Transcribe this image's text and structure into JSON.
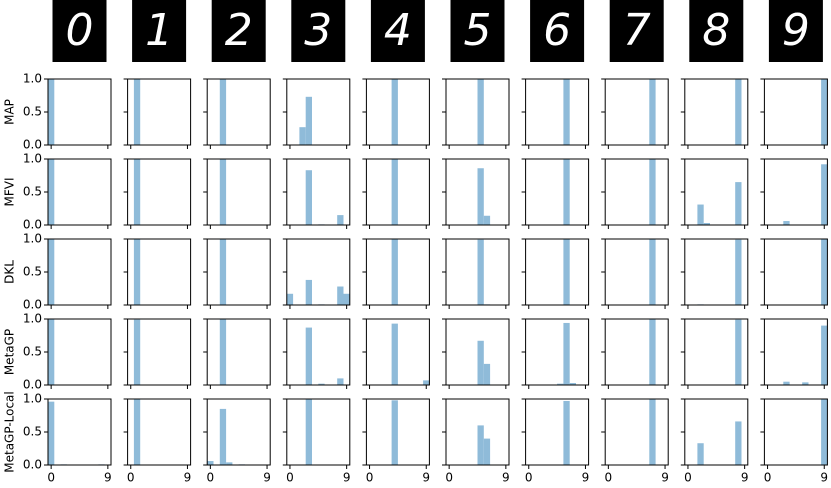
{
  "chart_data": {
    "type": "bar",
    "color": "#8fbbd9",
    "images": [
      "0",
      "1",
      "2",
      "3",
      "4",
      "5",
      "6",
      "7",
      "8",
      "9"
    ],
    "xlim": [
      -0.5,
      9.5
    ],
    "xticks": [
      0,
      9
    ],
    "ylim": [
      0,
      1
    ],
    "yticks": [
      {
        "value": 0,
        "label": "0.0"
      },
      {
        "value": 0.5,
        "label": "0.5"
      },
      {
        "value": 1,
        "label": "1.0"
      }
    ],
    "rows": [
      {
        "name": "MAP",
        "panels": [
          [
            1,
            0,
            0,
            0,
            0,
            0,
            0,
            0,
            0,
            0
          ],
          [
            0,
            1,
            0,
            0,
            0,
            0,
            0,
            0,
            0,
            0
          ],
          [
            0,
            0,
            1,
            0,
            0,
            0,
            0,
            0,
            0,
            0
          ],
          [
            0,
            0,
            0.27,
            0.73,
            0,
            0,
            0,
            0,
            0,
            0
          ],
          [
            0,
            0,
            0,
            0,
            1,
            0,
            0,
            0,
            0,
            0
          ],
          [
            0,
            0,
            0,
            0,
            0,
            1,
            0,
            0,
            0,
            0
          ],
          [
            0,
            0,
            0,
            0,
            0,
            0,
            1,
            0,
            0,
            0
          ],
          [
            0,
            0,
            0,
            0,
            0,
            0,
            0,
            1,
            0,
            0
          ],
          [
            0,
            0,
            0,
            0,
            0,
            0,
            0,
            0,
            1,
            0
          ],
          [
            0,
            0,
            0,
            0,
            0,
            0,
            0,
            0,
            0,
            1
          ]
        ]
      },
      {
        "name": "MFVI",
        "panels": [
          [
            1,
            0,
            0,
            0,
            0,
            0,
            0,
            0,
            0,
            0
          ],
          [
            0,
            1,
            0,
            0,
            0,
            0,
            0,
            0,
            0,
            0
          ],
          [
            0,
            0,
            1,
            0,
            0,
            0,
            0,
            0,
            0,
            0
          ],
          [
            0,
            0,
            0,
            0.83,
            0,
            0.01,
            0,
            0,
            0.15,
            0
          ],
          [
            0,
            0,
            0,
            0,
            1,
            0,
            0,
            0,
            0,
            0
          ],
          [
            0,
            0,
            0,
            0,
            0,
            0.86,
            0.14,
            0,
            0,
            0
          ],
          [
            0,
            0,
            0,
            0,
            0,
            0,
            1,
            0,
            0,
            0
          ],
          [
            0,
            0,
            0,
            0,
            0,
            0,
            0,
            1,
            0,
            0
          ],
          [
            0,
            0,
            0.31,
            0.03,
            0,
            0,
            0,
            0,
            0.65,
            0
          ],
          [
            0,
            0,
            0,
            0.06,
            0,
            0,
            0,
            0,
            0,
            0.92
          ]
        ]
      },
      {
        "name": "DKL",
        "panels": [
          [
            1,
            0,
            0,
            0,
            0,
            0,
            0,
            0,
            0,
            0
          ],
          [
            0,
            1,
            0,
            0,
            0,
            0,
            0,
            0,
            0,
            0
          ],
          [
            0,
            0,
            1,
            0,
            0,
            0,
            0,
            0,
            0,
            0
          ],
          [
            0.17,
            0,
            0,
            0.38,
            0,
            0.01,
            0,
            0,
            0.28,
            0.17
          ],
          [
            0,
            0,
            0,
            0,
            1,
            0,
            0,
            0,
            0,
            0
          ],
          [
            0,
            0,
            0,
            0,
            0,
            0.99,
            0.01,
            0,
            0,
            0
          ],
          [
            0,
            0,
            0,
            0,
            0,
            0,
            1,
            0,
            0,
            0
          ],
          [
            0,
            0,
            0,
            0,
            0,
            0,
            0,
            1,
            0,
            0
          ],
          [
            0,
            0,
            0.01,
            0,
            0,
            0,
            0,
            0,
            0.99,
            0
          ],
          [
            0,
            0,
            0,
            0,
            0,
            0,
            0,
            0,
            0,
            1
          ]
        ]
      },
      {
        "name": "MetaGP",
        "panels": [
          [
            1,
            0,
            0,
            0,
            0,
            0,
            0,
            0,
            0,
            0
          ],
          [
            0,
            0.99,
            0,
            0,
            0,
            0,
            0,
            0,
            0,
            0
          ],
          [
            0,
            0,
            1,
            0,
            0,
            0,
            0,
            0,
            0,
            0
          ],
          [
            0,
            0,
            0,
            0.87,
            0,
            0.02,
            0,
            0,
            0.1,
            0
          ],
          [
            0,
            0,
            0,
            0,
            0.93,
            0,
            0,
            0,
            0,
            0.07
          ],
          [
            0,
            0,
            0,
            0,
            0,
            0.67,
            0.32,
            0,
            0,
            0
          ],
          [
            0,
            0,
            0,
            0,
            0,
            0.02,
            0.94,
            0.03,
            0,
            0
          ],
          [
            0,
            0,
            0,
            0,
            0,
            0,
            0,
            1,
            0,
            0
          ],
          [
            0,
            0,
            0,
            0,
            0,
            0,
            0,
            0,
            0.99,
            0
          ],
          [
            0,
            0,
            0,
            0.05,
            0,
            0,
            0.04,
            0,
            0,
            0.9
          ]
        ]
      },
      {
        "name": "MetaGP-Local",
        "panels": [
          [
            0.96,
            0,
            0.01,
            0,
            0,
            0,
            0,
            0,
            0.01,
            0
          ],
          [
            0,
            1,
            0,
            0,
            0,
            0,
            0,
            0,
            0,
            0
          ],
          [
            0.06,
            0,
            0.85,
            0.04,
            0,
            0.01,
            0,
            0,
            0,
            0
          ],
          [
            0,
            0,
            0,
            1,
            0,
            0,
            0,
            0,
            0,
            0
          ],
          [
            0,
            0,
            0,
            0,
            0.98,
            0,
            0,
            0,
            0,
            0
          ],
          [
            0,
            0,
            0,
            0,
            0,
            0.6,
            0.4,
            0,
            0,
            0
          ],
          [
            0,
            0,
            0,
            0,
            0,
            0,
            0.97,
            0,
            0,
            0
          ],
          [
            0,
            0,
            0,
            0,
            0,
            0,
            0,
            1,
            0,
            0
          ],
          [
            0,
            0,
            0.33,
            0,
            0,
            0,
            0,
            0,
            0.66,
            0
          ],
          [
            0,
            0,
            0,
            0,
            0,
            0,
            0,
            0,
            0,
            1
          ]
        ]
      }
    ]
  }
}
